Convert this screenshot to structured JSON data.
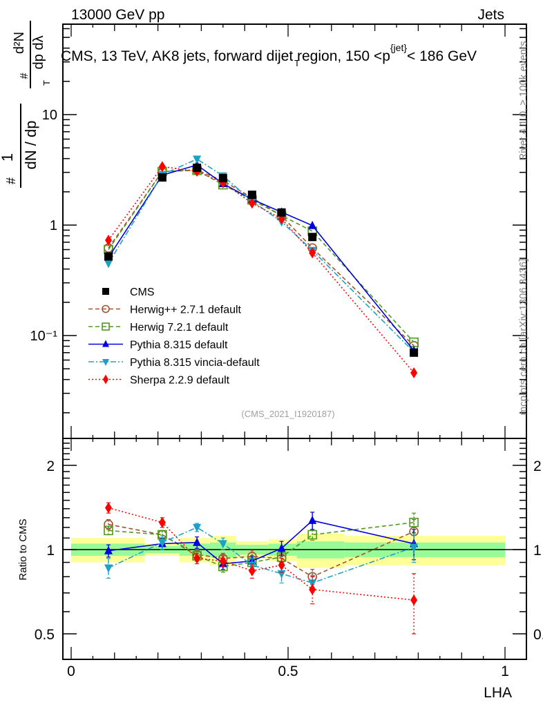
{
  "header": {
    "left": "13000 GeV pp",
    "right": "Jets"
  },
  "side_labels": {
    "rivet": "Rivet 4.1.0, ≥ 100k events",
    "mcplots": "mcplots.cern.ch [arXiv:1306.3436]"
  },
  "chart_data": [
    {
      "type": "line",
      "title": "CMS, 13 TeV, AK8 jets, forward dijet region, 150 <p_T^{jet}< 186 GeV",
      "ylabel": "1/dN/dp_T  d²N/dp_T dλ",
      "ylabel_parts": {
        "num_top": "1",
        "den_top": "dN / dp",
        "num_right": "d²N",
        "den_right": "dp  dλ",
        "sub": "T",
        "hash": "#"
      },
      "xlabel": "LHA",
      "yscale": "log",
      "ylim": [
        0.0117,
        66
      ],
      "xlim": [
        -0.02,
        1.05
      ],
      "ytick_labels": [
        {
          "v": 10,
          "label": "10"
        },
        {
          "v": 1,
          "label": "1"
        },
        {
          "v": 0.1,
          "label": "10⁻¹"
        }
      ],
      "watermark": "(CMS_2021_I1920187)",
      "legend_position": "center-left",
      "x": [
        0.086,
        0.21,
        0.29,
        0.35,
        0.417,
        0.485,
        0.556,
        0.79
      ],
      "bin_edges": [
        0.0,
        0.17,
        0.25,
        0.32,
        0.38,
        0.455,
        0.52,
        0.63,
        1.0
      ],
      "series": [
        {
          "name": "CMS",
          "color": "#000000",
          "marker": "square",
          "line": "none",
          "values": [
            0.52,
            2.7,
            3.3,
            2.66,
            1.88,
            1.3,
            0.78,
            0.07
          ]
        },
        {
          "name": "Herwig++ 2.7.1 default",
          "color": "#a0522d",
          "marker": "circle-open",
          "line": "dashed",
          "values": [
            0.62,
            3.05,
            3.15,
            2.52,
            1.77,
            1.21,
            0.62,
            0.081
          ]
        },
        {
          "name": "Herwig 7.2.1 default",
          "color": "#4c9a1c",
          "marker": "square-open",
          "line": "dashed",
          "values": [
            0.6,
            3.05,
            3.13,
            2.32,
            1.69,
            1.22,
            0.88,
            0.087
          ]
        },
        {
          "name": "Pythia 8.315 default",
          "color": "#0000e0",
          "marker": "triangle-up",
          "line": "solid",
          "values": [
            0.51,
            2.83,
            3.5,
            2.37,
            1.71,
            1.31,
            0.99,
            0.073
          ]
        },
        {
          "name": "Pythia 8.315 vincia-default",
          "color": "#1ba1c8",
          "marker": "triangle-down",
          "line": "dashdot",
          "values": [
            0.45,
            2.86,
            3.96,
            2.79,
            1.65,
            1.07,
            0.59,
            0.071
          ]
        },
        {
          "name": "Sherpa 2.2.9 default",
          "color": "#ff0000",
          "marker": "diamond",
          "line": "dotted",
          "values": [
            0.73,
            3.38,
            3.07,
            2.42,
            1.58,
            1.14,
            0.56,
            0.046
          ]
        }
      ]
    },
    {
      "type": "line",
      "ylabel": "Ratio to CMS",
      "xlabel": "LHA",
      "yscale": "log",
      "ylim": [
        0.41,
        2.5
      ],
      "xlim": [
        -0.02,
        1.05
      ],
      "ytick_labels": [
        {
          "v": 2,
          "label": "2"
        },
        {
          "v": 1,
          "label": "1"
        },
        {
          "v": 0.5,
          "label": "0.5"
        }
      ],
      "xtick_labels": [
        {
          "v": 0,
          "label": "0"
        },
        {
          "v": 0.5,
          "label": "0.5"
        },
        {
          "v": 1,
          "label": "1"
        }
      ],
      "x": [
        0.086,
        0.21,
        0.29,
        0.35,
        0.417,
        0.485,
        0.556,
        0.79
      ],
      "bin_edges": [
        0.0,
        0.17,
        0.25,
        0.32,
        0.38,
        0.455,
        0.52,
        0.63,
        1.0
      ],
      "data_band_inner": [
        0.05,
        0.03,
        0.05,
        0.06,
        0.04,
        0.05,
        0.07,
        0.06
      ],
      "data_band_outer": [
        0.1,
        0.05,
        0.1,
        0.12,
        0.07,
        0.09,
        0.14,
        0.12
      ],
      "series": [
        {
          "name": "Herwig++ 2.7.1 default",
          "color": "#a0522d",
          "marker": "circle-open",
          "line": "dashed",
          "values": [
            1.23,
            1.13,
            0.96,
            0.93,
            0.945,
            0.93,
            0.8,
            1.16
          ],
          "err": [
            0.05,
            0.04,
            0.04,
            0.04,
            0.05,
            0.05,
            0.05,
            0.12
          ]
        },
        {
          "name": "Herwig 7.2.1 default",
          "color": "#4c9a1c",
          "marker": "square-open",
          "line": "dashed",
          "values": [
            1.17,
            1.13,
            0.95,
            0.87,
            0.9,
            0.94,
            1.13,
            1.25
          ],
          "err": [
            0.04,
            0.04,
            0.04,
            0.04,
            0.04,
            0.04,
            0.05,
            0.1
          ]
        },
        {
          "name": "Pythia 8.315 default",
          "color": "#0000e0",
          "marker": "triangle-up",
          "line": "solid",
          "values": [
            0.99,
            1.05,
            1.06,
            0.89,
            0.91,
            1.01,
            1.27,
            1.05
          ],
          "err": [
            0.05,
            0.05,
            0.05,
            0.04,
            0.04,
            0.06,
            0.09,
            0.13
          ]
        },
        {
          "name": "Pythia 8.315 vincia-default",
          "color": "#1ba1c8",
          "marker": "triangle-down",
          "line": "dashdot",
          "values": [
            0.86,
            1.06,
            1.2,
            1.05,
            0.88,
            0.82,
            0.76,
            1.02
          ],
          "err": [
            0.07,
            0.06,
            0.04,
            0.05,
            0.05,
            0.06,
            0.05,
            0.12
          ]
        },
        {
          "name": "Sherpa 2.2.9 default",
          "color": "#ff0000",
          "marker": "diamond",
          "line": "dotted",
          "values": [
            1.41,
            1.25,
            0.93,
            0.91,
            0.84,
            0.88,
            0.72,
            0.66
          ],
          "err": [
            0.06,
            0.05,
            0.04,
            0.04,
            0.05,
            0.05,
            0.08,
            0.16
          ]
        }
      ]
    }
  ]
}
